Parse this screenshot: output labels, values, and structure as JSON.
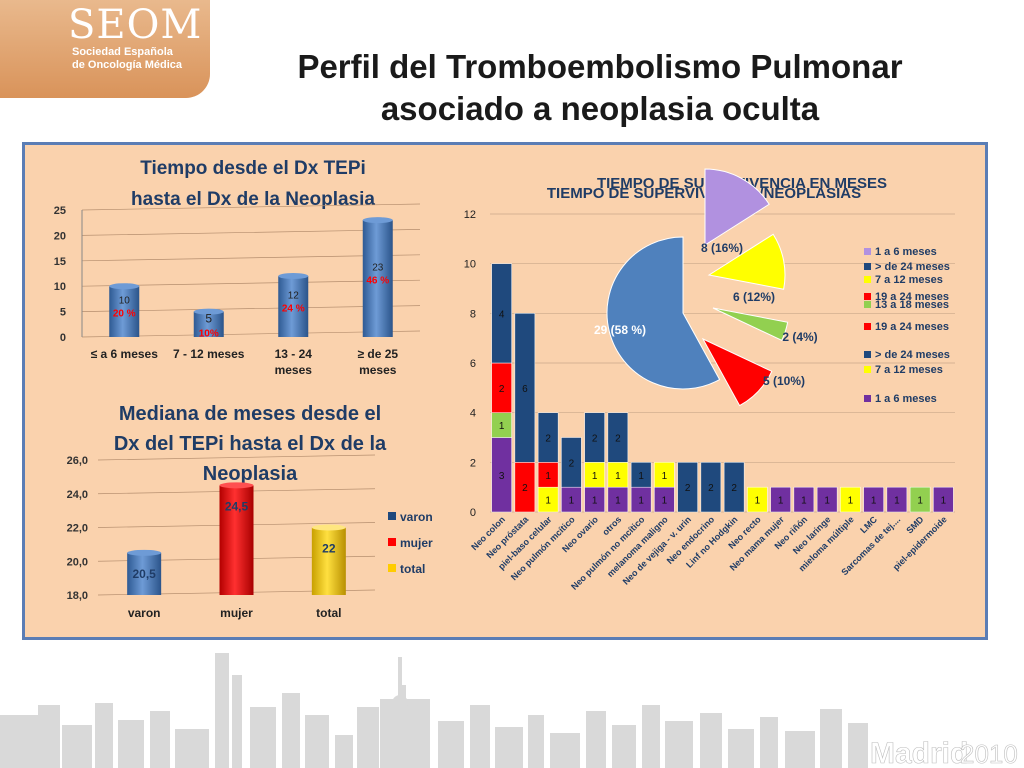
{
  "logo": {
    "name": "SEOM",
    "line1": "Sociedad Española",
    "line2": "de Oncología Médica"
  },
  "footer": {
    "city": "Madrid",
    "year": "2010"
  },
  "slide": {
    "title_line1": "Perfil del Tromboembolismo Pulmonar",
    "title_line2": "asociado a neoplasia oculta"
  },
  "colors": {
    "panel": "#fad2ad",
    "panel_border": "#5a7db5",
    "blue": "#4f81bd",
    "red": "#ff0000",
    "yellow": "#ffff00",
    "green": "#92d050",
    "purple": "#7030a0",
    "navy": "#1f497d",
    "lilac": "#b191e0"
  },
  "chart_data": [
    {
      "type": "bar",
      "title_line1": "Tiempo desde el Dx TEPi",
      "title_line2": "hasta el Dx de la Neoplasia",
      "categories": [
        [
          "≤ a 6 meses"
        ],
        [
          "7 - 12 meses"
        ],
        [
          "13 - 24",
          "meses"
        ],
        [
          "≥  de 25",
          "meses"
        ]
      ],
      "values": [
        10,
        5,
        12,
        23
      ],
      "percent_labels": [
        "20 %",
        "10%",
        "24 %",
        "46 %"
      ],
      "ylim": [
        0,
        25
      ],
      "yticks": [
        "0",
        "5",
        "10",
        "15",
        "20",
        "25"
      ]
    },
    {
      "type": "bar",
      "title_line1": "Mediana de meses desde el",
      "title_line2": "Dx del TEPi hasta el Dx de la",
      "title_line3": "Neoplasia",
      "categories": [
        "varon",
        "mujer",
        "total"
      ],
      "values": [
        20.5,
        24.5,
        22
      ],
      "value_labels": [
        "20,5",
        "24,5",
        "22"
      ],
      "ylim": [
        18,
        26
      ],
      "yticks": [
        "18,0",
        "20,0",
        "22,0",
        "24,0",
        "26,0"
      ],
      "legend": [
        "varon",
        "mujer",
        "total"
      ],
      "legend_position": "right"
    },
    {
      "type": "bar",
      "stacked": true,
      "title_line1": "TIEMPO DE SUPERVIVENCIA EN MESES",
      "title_line2": "TIEMPO DE SUPERVIVENCIA /NEOPLASIAS",
      "categories": [
        "Neo colon",
        "Neo próstata",
        "piel-baso celular",
        "Neo pulmón mcítico",
        "Neo ovario",
        "otros",
        "Neo pulmón no mcítico",
        "melanoma maligno",
        "Neo de vejiga - v. urin",
        "Neo endocrino",
        "Linf no Hodgkin",
        "Neo recto",
        "Neo mama mujer",
        "Neo riñón",
        "Neo laringe",
        "mieloma múltiple",
        "LMC",
        "Sarcomas de tej....",
        "SMD",
        "piel-epidermoide"
      ],
      "series": [
        {
          "name": "1 a 6 meses",
          "values": [
            3,
            0,
            0,
            1,
            1,
            1,
            1,
            1,
            0,
            0,
            0,
            0,
            1,
            1,
            1,
            0,
            1,
            1,
            0,
            1
          ]
        },
        {
          "name": "7 a 12 meses",
          "values": [
            0,
            0,
            1,
            0,
            1,
            1,
            0,
            1,
            0,
            0,
            0,
            1,
            0,
            0,
            0,
            1,
            0,
            0,
            0,
            0
          ]
        },
        {
          "name": "13 a 18 meses",
          "values": [
            1,
            0,
            0,
            0,
            0,
            0,
            0,
            0,
            0,
            0,
            0,
            0,
            0,
            0,
            0,
            0,
            0,
            0,
            1,
            0
          ]
        },
        {
          "name": "19 a 24 meses",
          "values": [
            2,
            2,
            1,
            0,
            0,
            0,
            0,
            0,
            0,
            0,
            0,
            0,
            0,
            0,
            0,
            0,
            0,
            0,
            0,
            0
          ]
        },
        {
          "name": "> de 24 meses",
          "values": [
            4,
            6,
            2,
            2,
            2,
            2,
            1,
            0,
            2,
            2,
            2,
            0,
            0,
            0,
            0,
            0,
            0,
            0,
            0,
            0
          ]
        }
      ],
      "ylim": [
        0,
        12
      ],
      "yticks": [
        "0",
        "2",
        "4",
        "6",
        "8",
        "10",
        "12"
      ],
      "legend": [
        "1 a 6 meses",
        "> de 24 meses",
        "7 a 12 meses",
        "19 a 24 meses",
        "13 a 18 meses",
        "19 a 24 meses",
        "> de 24 meses",
        "7 a 12 meses",
        "1 a 6 meses"
      ],
      "legend_position": "right"
    },
    {
      "type": "pie",
      "slices": [
        {
          "label": "8 (16%)",
          "value": 8
        },
        {
          "label": "6 (12%)",
          "value": 6
        },
        {
          "label": "2 (4%)",
          "value": 2
        },
        {
          "label": "5 (10%)",
          "value": 5
        },
        {
          "label": "29 (58 %)",
          "value": 29
        }
      ]
    }
  ]
}
